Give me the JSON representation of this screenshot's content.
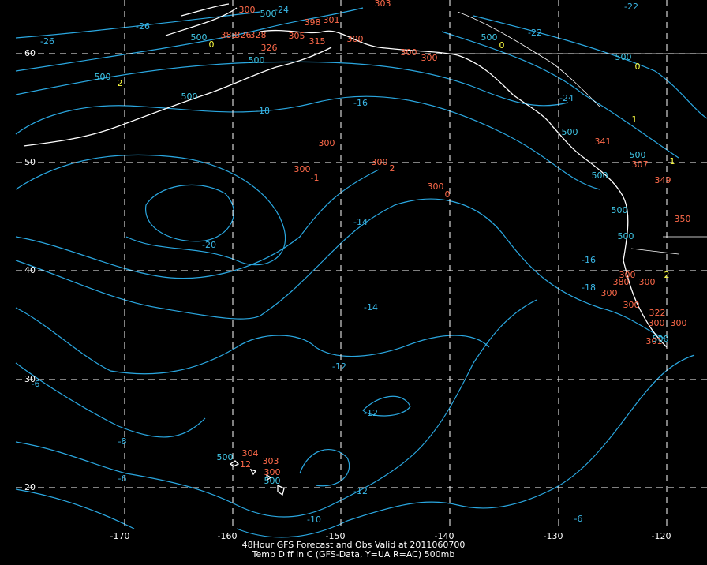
{
  "title": "48Hour GFS Forecast and Obs Valid at 2011060700",
  "subtitle": "Temp Diff in C (GFS-Data, Y=UA R=AC) 500mb",
  "lat_labels": [
    "60",
    "50",
    "40",
    "30",
    "20"
  ],
  "lon_labels": [
    "-170",
    "-160",
    "-150",
    "-140",
    "-130",
    "-120"
  ],
  "contour_labels": [
    "-26",
    "-26",
    "-24",
    "-22",
    "-22",
    "-24",
    "-18",
    "-16",
    "-14",
    "-20",
    "-16",
    "-18",
    "-14",
    "-12",
    "-12",
    "-12",
    "-10",
    "-8",
    "-6",
    "-6",
    "-6"
  ],
  "station_500": [
    "500",
    "500",
    "500",
    "500",
    "500",
    "500",
    "500",
    "500",
    "500",
    "500",
    "500",
    "500",
    "500",
    "500",
    "500"
  ],
  "station_temp": [
    "300",
    "303",
    "398",
    "301",
    "383",
    "326",
    "328",
    "305",
    "315",
    "300",
    "326",
    "300",
    "300",
    "300",
    "300",
    "-1",
    "300",
    "2",
    "300",
    "0",
    "341",
    "307",
    "349",
    "350",
    "300",
    "380",
    "300",
    "300",
    "300",
    "322",
    "300",
    "300",
    "301",
    "304",
    "303",
    "300",
    "12"
  ],
  "station_diff": [
    "0",
    "0",
    "0",
    "1",
    "2",
    "1",
    "2"
  ]
}
